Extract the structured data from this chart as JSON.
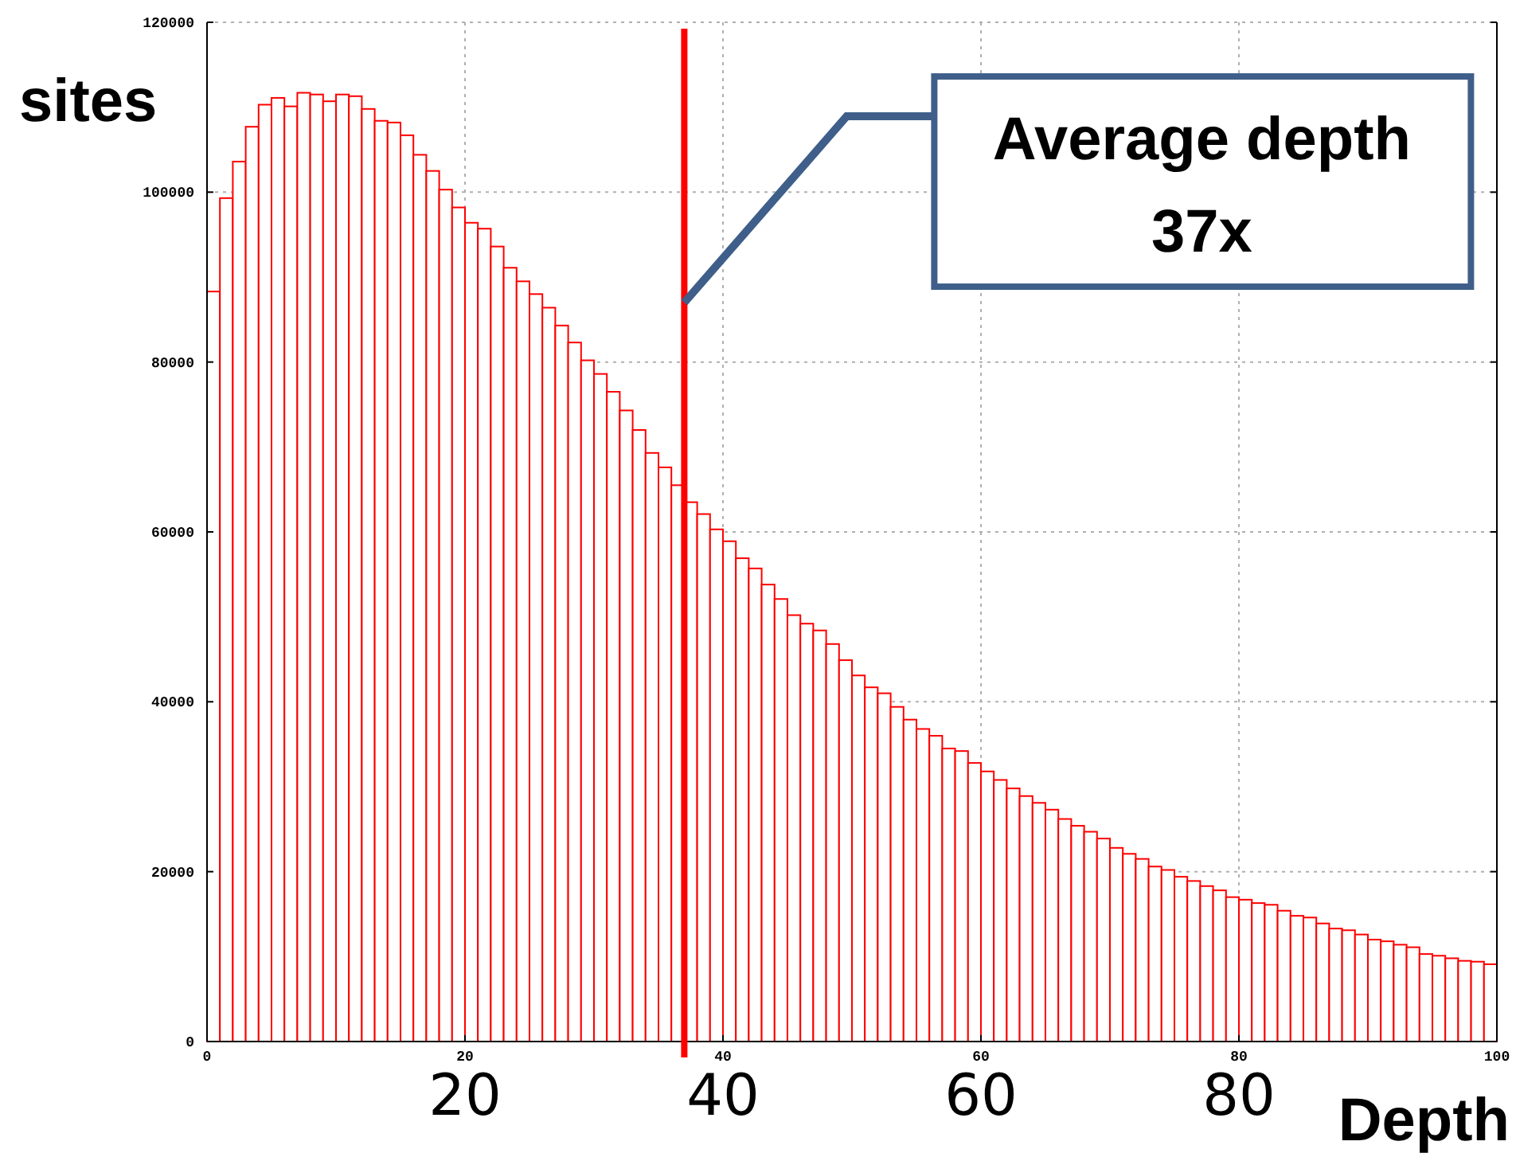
{
  "chart_data": {
    "type": "histogram",
    "xlabel": "Depth",
    "ylabel": "sites",
    "color": "#ff0000",
    "bins": [
      0,
      1,
      2,
      3,
      4,
      5,
      6,
      7,
      8,
      9,
      10,
      11,
      12,
      13,
      14,
      15,
      16,
      17,
      18,
      19,
      20,
      21,
      22,
      23,
      24,
      25,
      26,
      27,
      28,
      29,
      30,
      31,
      32,
      33,
      34,
      35,
      36,
      37,
      38,
      39,
      40,
      41,
      42,
      43,
      44,
      45,
      46,
      47,
      48,
      49,
      50,
      51,
      52,
      53,
      54,
      55,
      56,
      57,
      58,
      59,
      60,
      61,
      62,
      63,
      64,
      65,
      66,
      67,
      68,
      69,
      70,
      71,
      72,
      73,
      74,
      75,
      76,
      77,
      78,
      79,
      80,
      81,
      82,
      83,
      84,
      85,
      86,
      87,
      88,
      89,
      90,
      91,
      92,
      93,
      94,
      95,
      96,
      97,
      98,
      99,
      100
    ],
    "values": [
      88300,
      99300,
      103600,
      107700,
      110300,
      111100,
      110100,
      111700,
      111500,
      110700,
      111500,
      111300,
      109800,
      108400,
      108200,
      106700,
      104400,
      102500,
      100300,
      98200,
      96400,
      95700,
      93600,
      91100,
      89500,
      88000,
      86400,
      84300,
      82300,
      80200,
      78600,
      76500,
      74300,
      72000,
      69300,
      67600,
      65500,
      63500,
      62100,
      60300,
      58900,
      56900,
      55700,
      53800,
      52100,
      50200,
      49200,
      48400,
      46800,
      44900,
      43100,
      41700,
      41000,
      39400,
      37900,
      36800,
      36000,
      34500,
      34200,
      32800,
      31800,
      30800,
      29800,
      28900,
      28100,
      27300,
      26200,
      25400,
      24700,
      23900,
      22800,
      22100,
      21500,
      20600,
      20200,
      19400,
      18900,
      18300,
      17800,
      17000,
      16700,
      16300,
      16100,
      15400,
      14800,
      14600,
      13900,
      13300,
      13100,
      12600,
      12000,
      11800,
      11400,
      11100,
      10300,
      10100,
      9800,
      9500,
      9400,
      9100
    ],
    "xlim": [
      0,
      100
    ],
    "xticks": [
      0,
      20,
      40,
      60,
      80,
      100
    ],
    "ylim": [
      0,
      120000
    ],
    "yticks": [
      0,
      20000,
      40000,
      60000,
      80000,
      100000,
      120000
    ],
    "x2lim": [
      0,
      100
    ],
    "x2ticks": [
      20,
      40,
      60,
      80
    ],
    "grid": true,
    "ref_lines": [
      {
        "axis": "x",
        "value": 37,
        "color": "#ff0000"
      }
    ],
    "annotations": [
      {
        "text": "Average depth\n37x",
        "x": 37,
        "y": 87000
      }
    ]
  }
}
